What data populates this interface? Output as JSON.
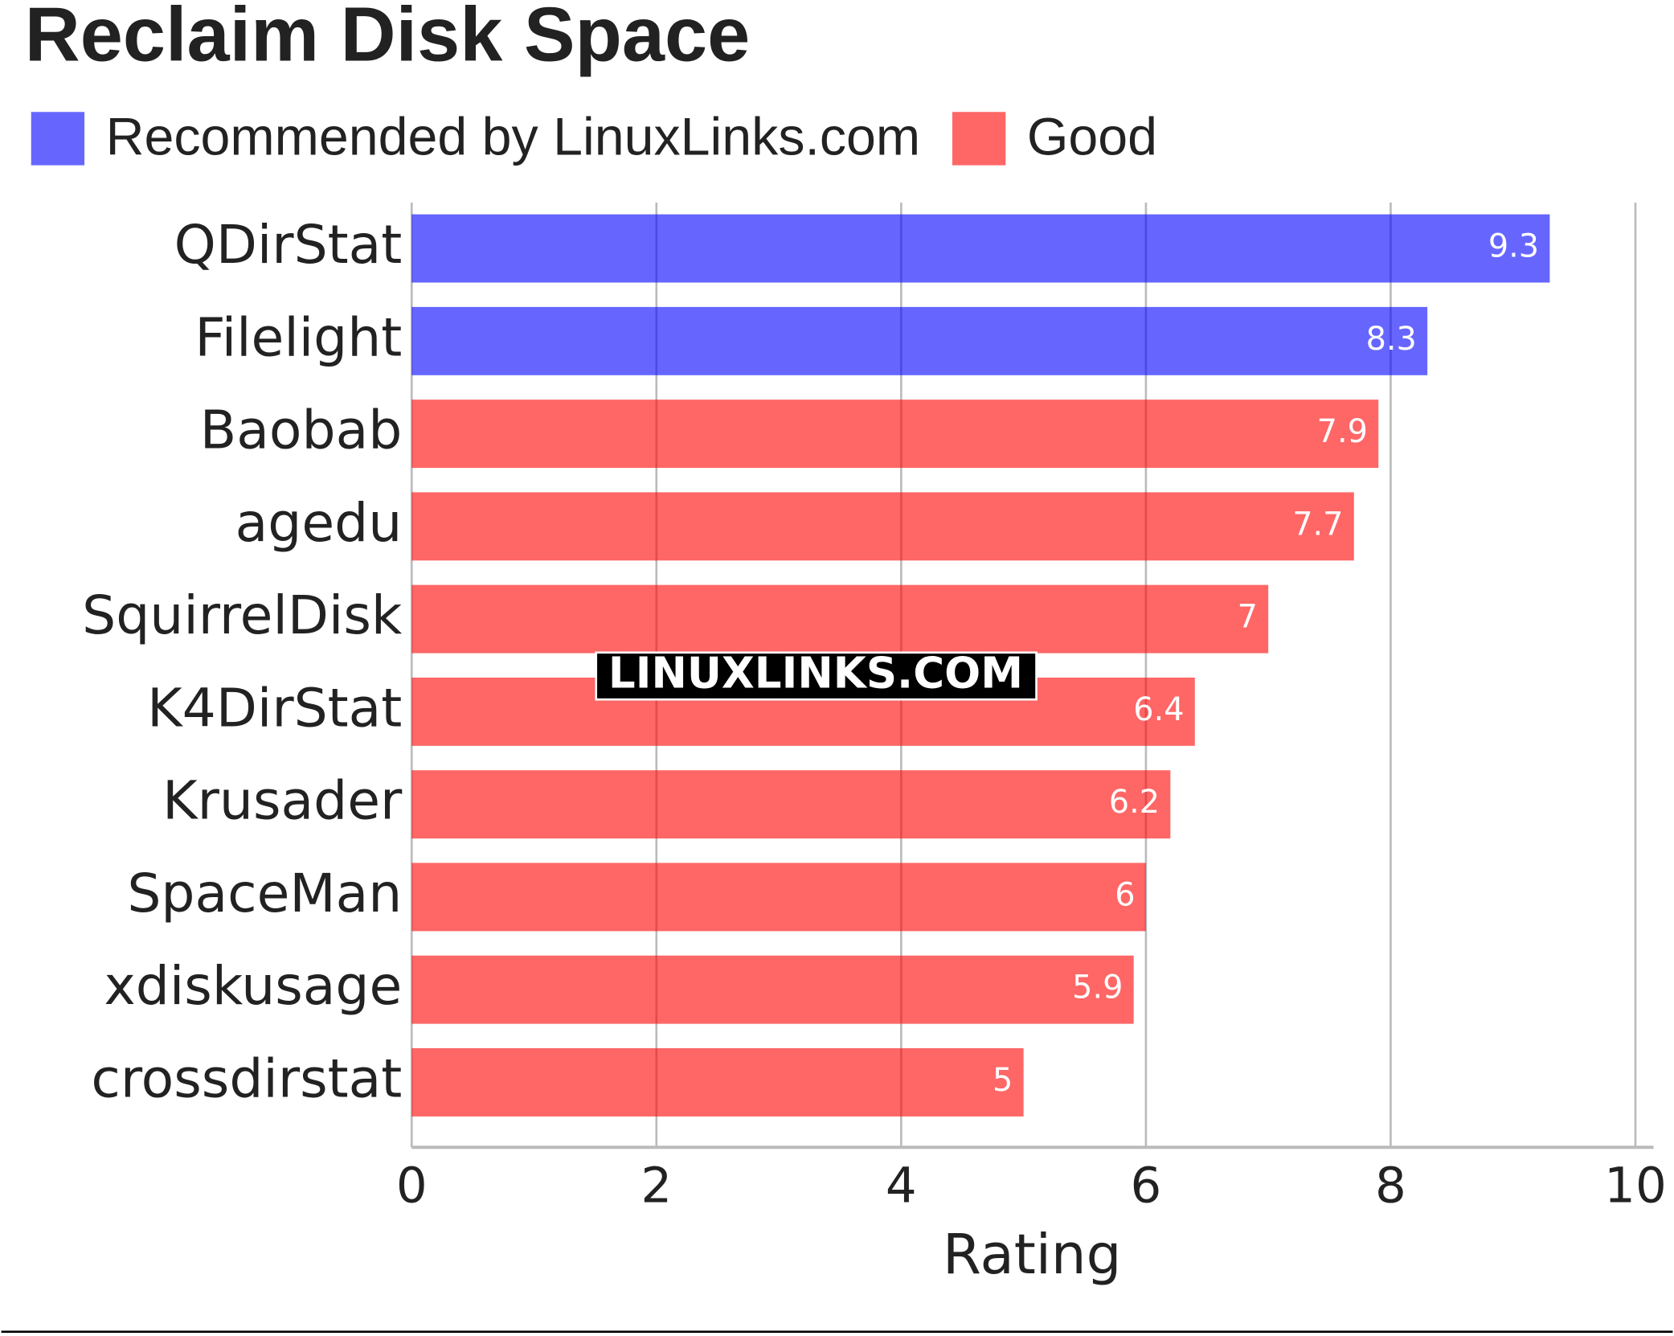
{
  "chart_data": {
    "type": "bar",
    "orientation": "horizontal",
    "title": "Reclaim Disk Space",
    "categories": [
      "QDirStat",
      "Filelight",
      "Baobab",
      "agedu",
      "SquirrelDisk",
      "K4DirStat",
      "Krusader",
      "SpaceMan",
      "xdiskusage",
      "crossdirstat"
    ],
    "series": [
      {
        "name": "Recommended by LinuxLinks.com",
        "color": "#0000ff",
        "values": [
          9.3,
          8.3,
          null,
          null,
          null,
          null,
          null,
          null,
          null,
          null
        ]
      },
      {
        "name": "Good",
        "color": "#ff0000",
        "values": [
          null,
          null,
          7.9,
          7.7,
          7,
          6.4,
          6.2,
          6,
          5.9,
          5
        ]
      }
    ],
    "xlabel": "Rating",
    "xlim": [
      0,
      10
    ],
    "xticks": [
      0,
      2,
      4,
      6,
      8,
      10
    ],
    "grid": true,
    "watermark": "LINUXLINKS.COM"
  }
}
